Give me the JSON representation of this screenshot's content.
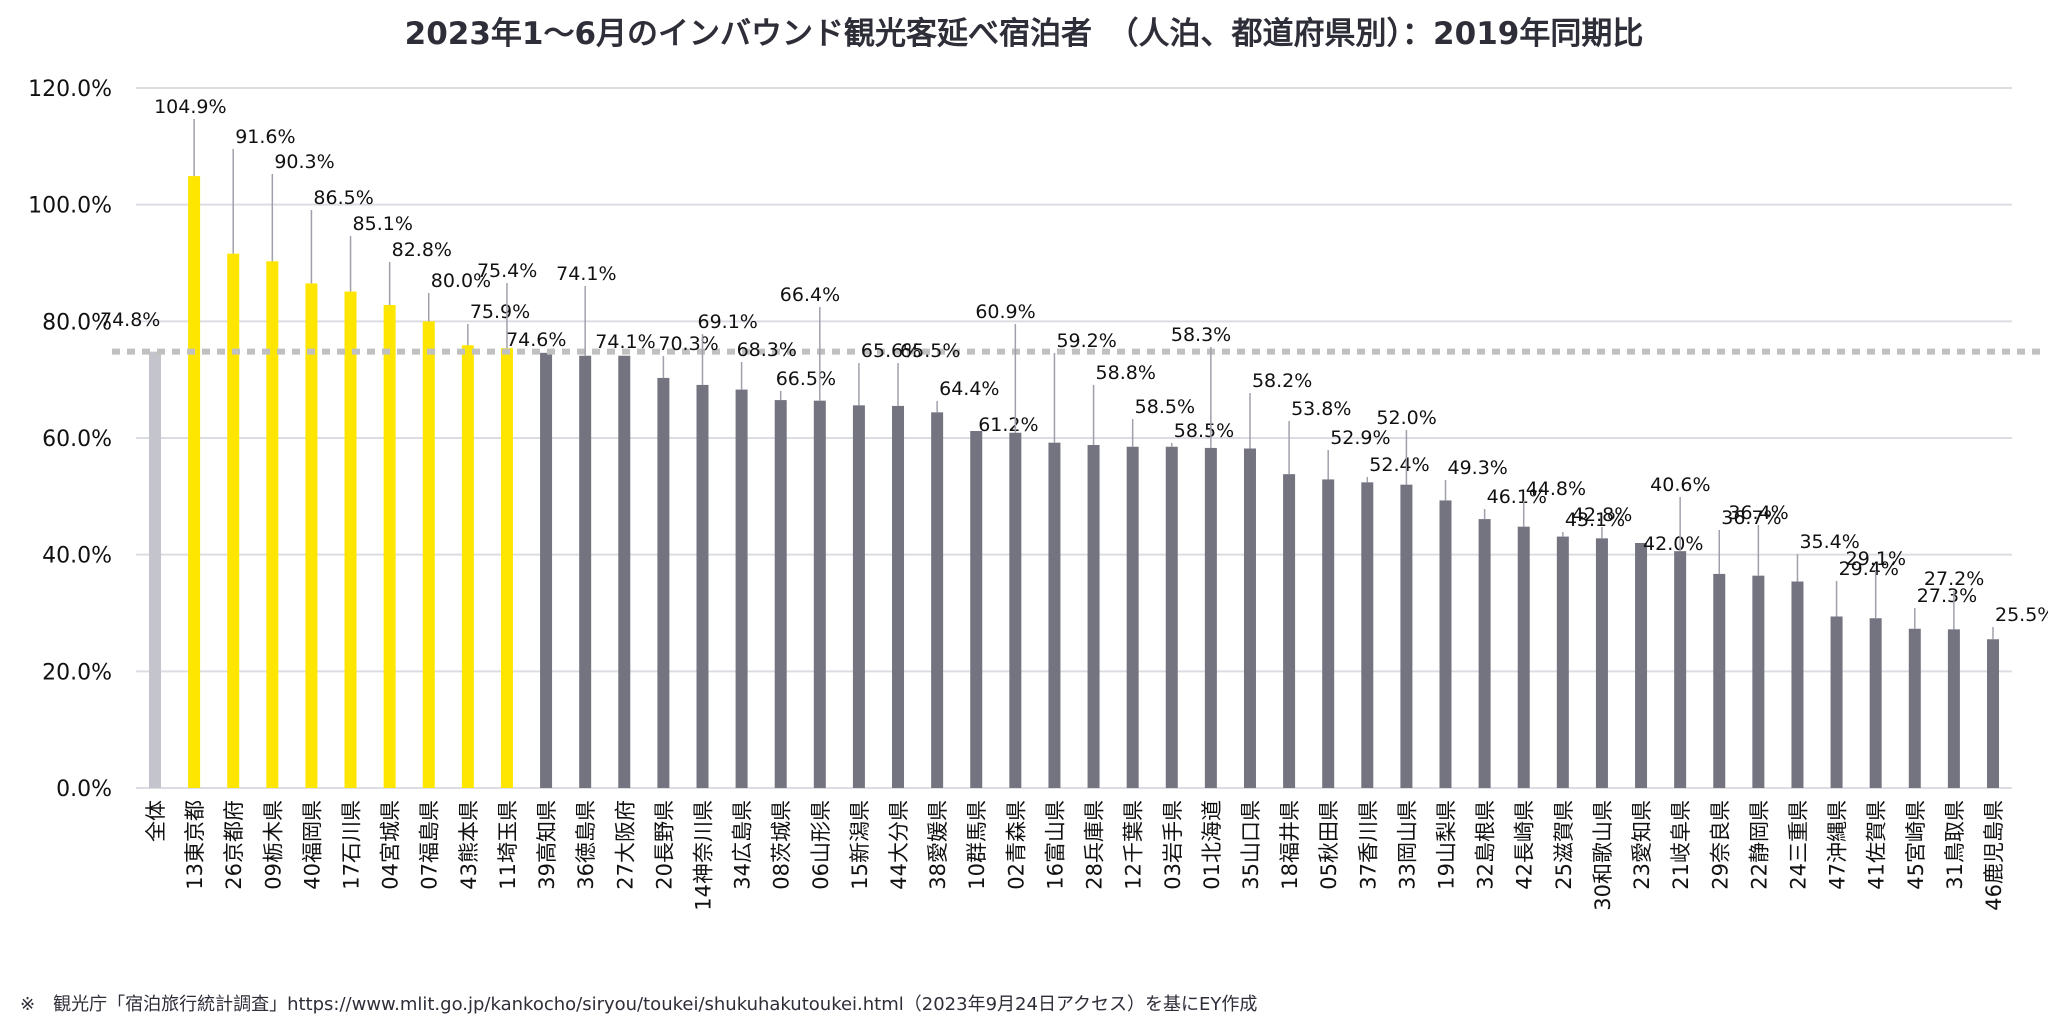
{
  "chart_data": {
    "type": "bar",
    "title": "2023年1〜6月のインバウンド観光客延べ宿泊者　（人泊、都道府県別）：2019年同期比",
    "xlabel": "",
    "ylabel": "",
    "ylim": [
      0,
      120
    ],
    "yticks": [
      0,
      20,
      40,
      60,
      80,
      100,
      120
    ],
    "ytick_labels": [
      "0.0%",
      "20.0%",
      "40.0%",
      "60.0%",
      "80.0%",
      "100.0%",
      "120.0%"
    ],
    "grid": true,
    "reference_line": {
      "value": 74.8,
      "style": "dotted",
      "label": "全体"
    },
    "colors": {
      "total": "#c4c4cd",
      "above": "#ffe600",
      "below": "#747480",
      "grid": "#dcdce3",
      "reference": "#c0c0c0",
      "leader": "#a0a0ac"
    },
    "categories": [
      "全体",
      "13東京都",
      "26京都府",
      "09栃木県",
      "40福岡県",
      "17石川県",
      "04宮城県",
      "07福島県",
      "43熊本県",
      "11埼玉県",
      "39高知県",
      "36徳島県",
      "27大阪府",
      "20長野県",
      "14神奈川県",
      "34広島県",
      "08茨城県",
      "06山形県",
      "15新潟県",
      "44大分県",
      "38愛媛県",
      "10群馬県",
      "02青森県",
      "16富山県",
      "28兵庫県",
      "12千葉県",
      "03岩手県",
      "01北海道",
      "35山口県",
      "18福井県",
      "05秋田県",
      "37香川県",
      "33岡山県",
      "19山梨県",
      "32島根県",
      "42長崎県",
      "25滋賀県",
      "30和歌山県",
      "23愛知県",
      "21岐阜県",
      "29奈良県",
      "22静岡県",
      "24三重県",
      "47沖縄県",
      "41佐賀県",
      "45宮崎県",
      "31鳥取県",
      "46鹿児島県"
    ],
    "values": [
      74.8,
      104.9,
      91.6,
      90.3,
      86.5,
      85.1,
      82.8,
      80.0,
      75.9,
      75.4,
      74.6,
      74.1,
      74.1,
      70.3,
      69.1,
      68.3,
      66.5,
      66.4,
      65.6,
      65.5,
      64.4,
      61.2,
      60.9,
      59.2,
      58.8,
      58.5,
      58.5,
      58.3,
      58.2,
      53.8,
      52.9,
      52.4,
      52.0,
      49.3,
      46.1,
      44.8,
      43.1,
      42.8,
      42.0,
      40.6,
      36.7,
      36.4,
      35.4,
      29.4,
      29.1,
      27.3,
      27.2,
      25.5
    ],
    "data_labels": [
      "74.8%",
      "104.9%",
      "91.6%",
      "90.3%",
      "86.5%",
      "85.1%",
      "82.8%",
      "80.0%",
      "75.9%",
      "75.4%",
      "74.6%",
      "74.1%",
      "74.1%",
      "70.3%",
      "69.1%",
      "68.3%",
      "66.5%",
      "66.4%",
      "65.6%",
      "65.5%",
      "64.4%",
      "61.2%",
      "60.9%",
      "59.2%",
      "58.8%",
      "58.5%",
      "58.5%",
      "58.3%",
      "58.2%",
      "53.8%",
      "52.9%",
      "52.4%",
      "52.0%",
      "49.3%",
      "46.1%",
      "44.8%",
      "43.1%",
      "42.8%",
      "42.0%",
      "40.6%",
      "36.7%",
      "36.4%",
      "35.4%",
      "29.4%",
      "29.1%",
      "27.3%",
      "27.2%",
      "25.5%"
    ],
    "color_groups": [
      "total",
      "above",
      "above",
      "above",
      "above",
      "above",
      "above",
      "above",
      "above",
      "above",
      "below",
      "below",
      "below",
      "below",
      "below",
      "below",
      "below",
      "below",
      "below",
      "below",
      "below",
      "below",
      "below",
      "below",
      "below",
      "below",
      "below",
      "below",
      "below",
      "below",
      "below",
      "below",
      "below",
      "below",
      "below",
      "below",
      "below",
      "below",
      "below",
      "below",
      "below",
      "below",
      "below",
      "below",
      "below",
      "below",
      "below",
      "below"
    ]
  },
  "footnote": "※　観光庁「宿泊旅行統計調査」https://www.mlit.go.jp/kankocho/siryou/toukei/shukuhakutoukei.html（2023年9月24日アクセス）を基にEY作成"
}
